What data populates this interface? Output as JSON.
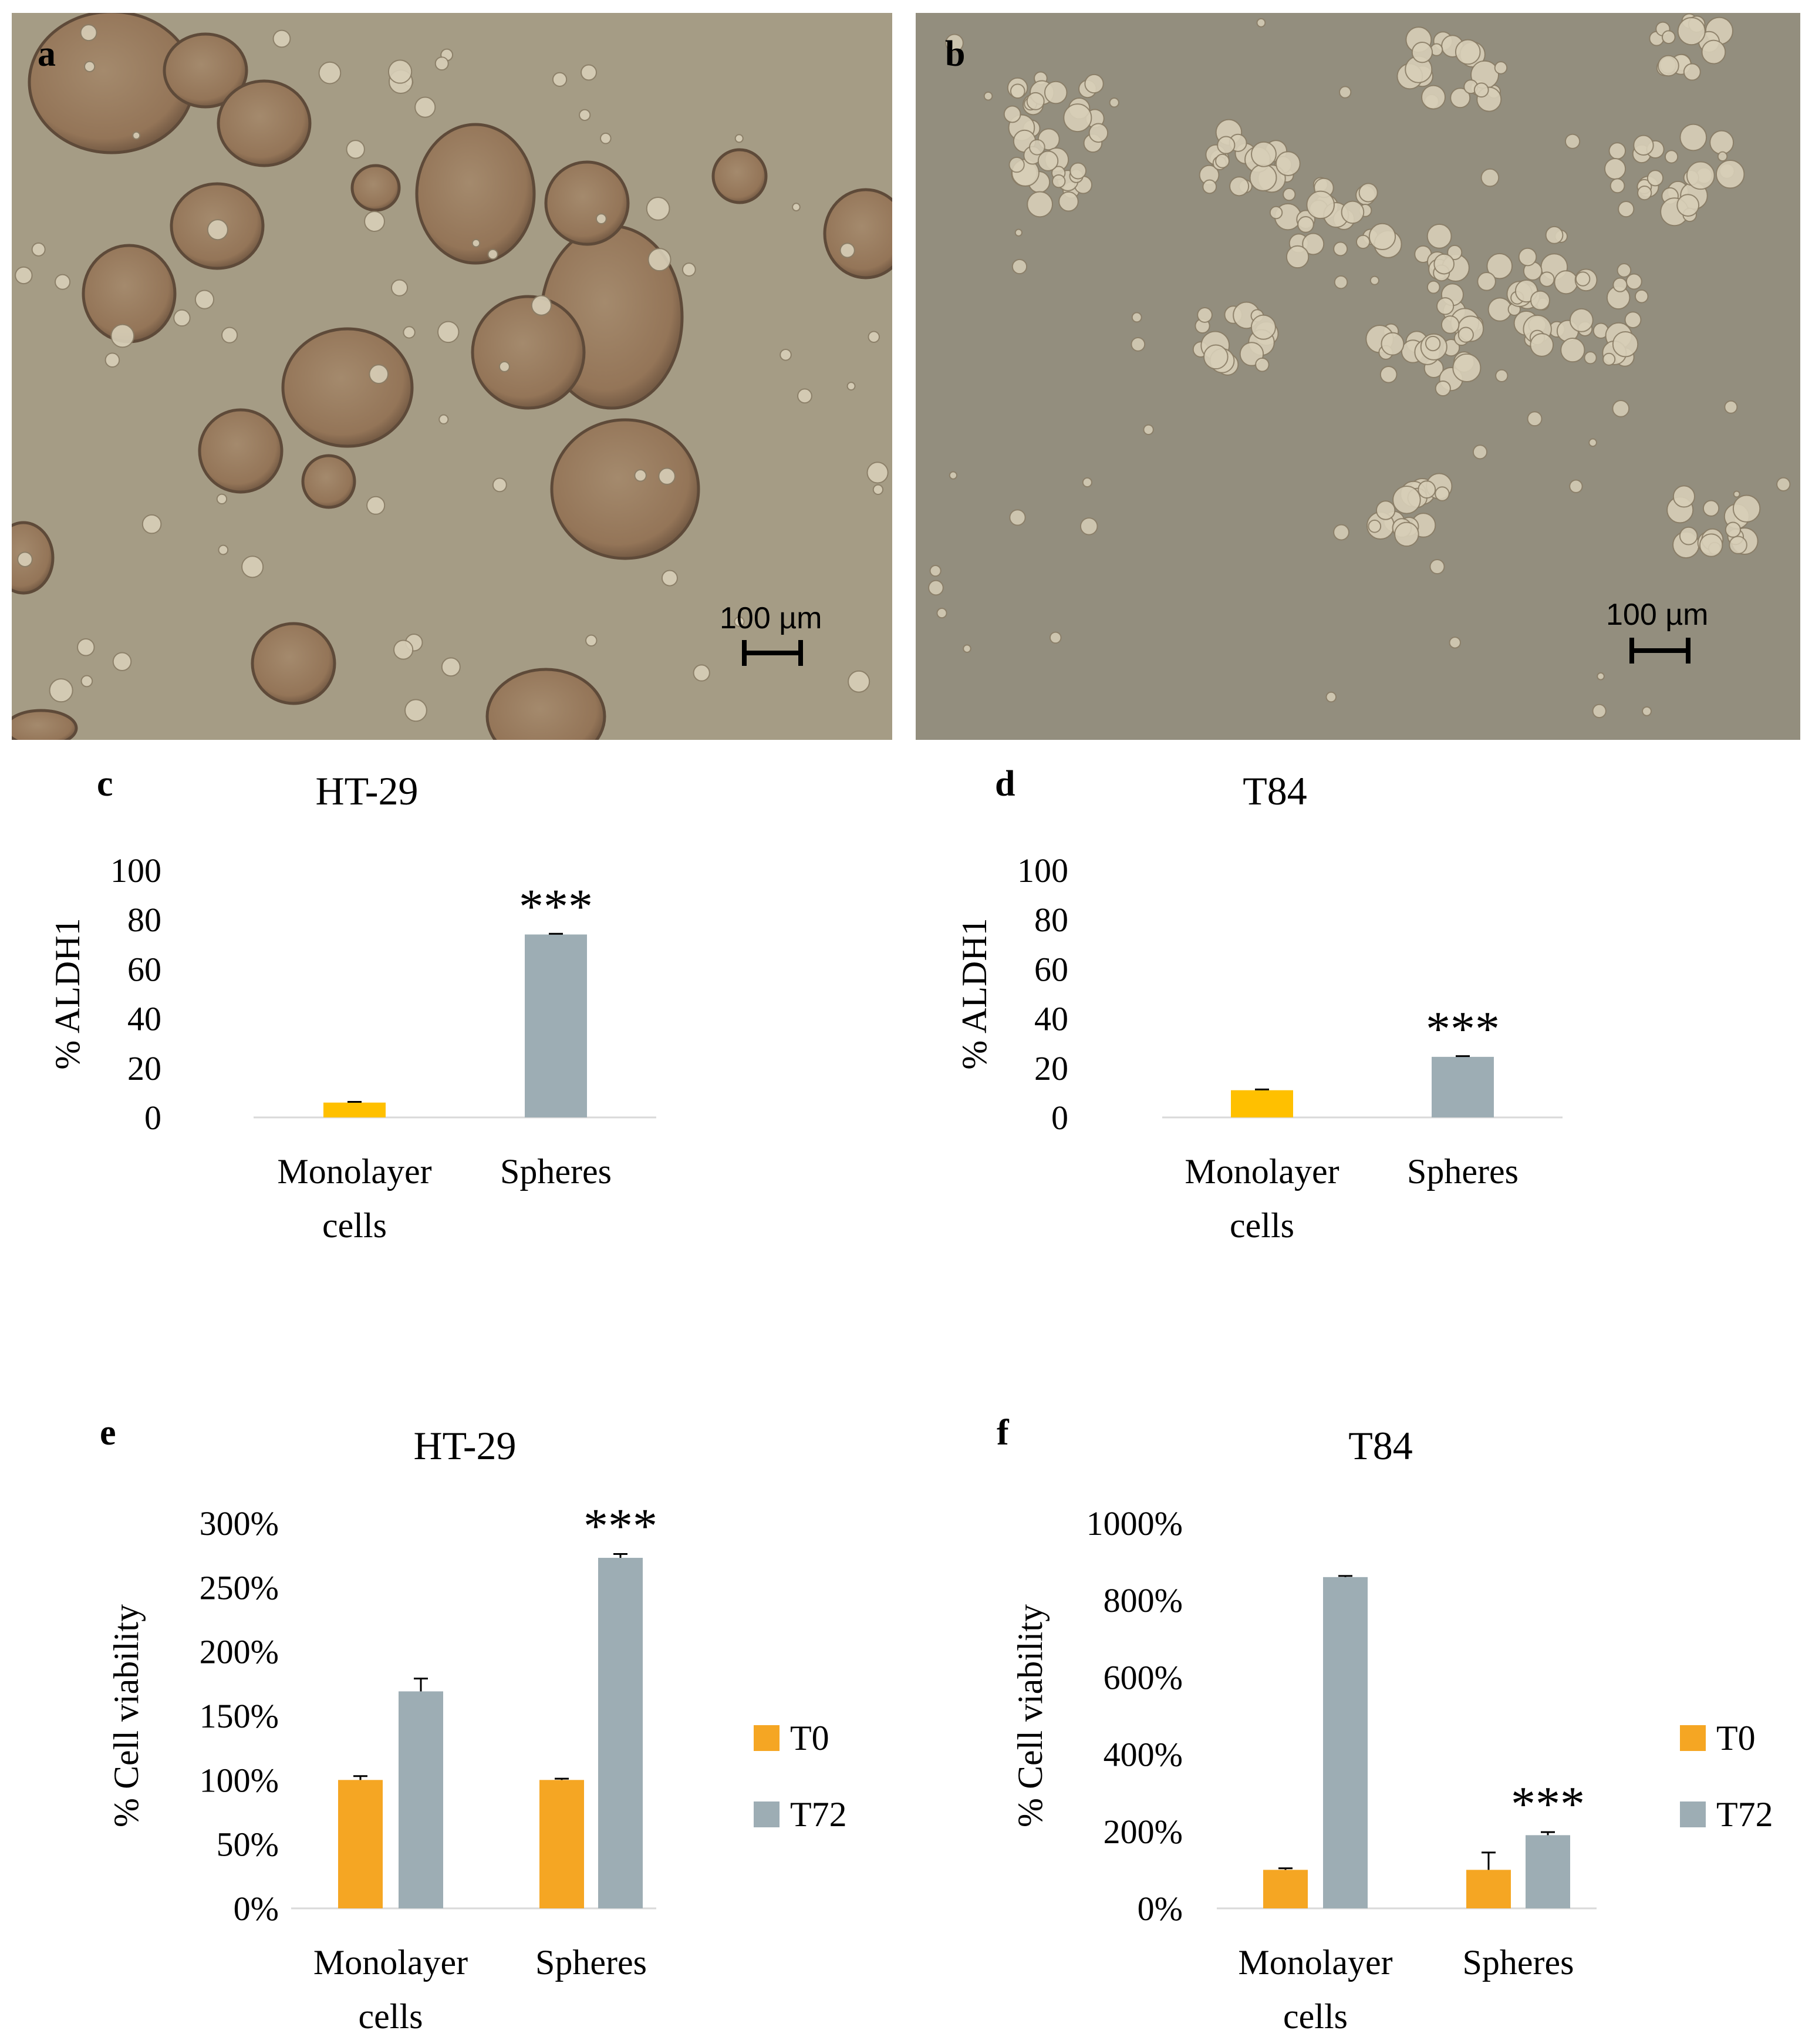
{
  "panels": {
    "a": {
      "letter": "a",
      "scale_label": "100 µm"
    },
    "b": {
      "letter": "b",
      "scale_label": "100 µm"
    }
  },
  "colors": {
    "monolayer_c": "#FFC000",
    "monolayer_d": "#FFC000",
    "t0": "#F5A623",
    "t72": "#9DADB4",
    "spheres": "#9DADB4",
    "micro_bg_a": "#a59c85",
    "micro_bg_b": "#938e7e",
    "sphere_fill": "#9d7f62",
    "cell_fill": "#d8cfb8"
  },
  "chart_data": [
    {
      "id": "c",
      "letter": "c",
      "type": "bar",
      "title": "HT-29",
      "ylabel": "% ALDH1",
      "categories": [
        "Monolayer cells",
        "Spheres"
      ],
      "category_lines": [
        [
          "Monolayer",
          "cells"
        ],
        [
          "Spheres"
        ]
      ],
      "values": [
        6,
        74
      ],
      "errors": [
        0.3,
        0.3
      ],
      "ylim": [
        0,
        100
      ],
      "yticks": [
        "0",
        "20",
        "40",
        "60",
        "80",
        "100"
      ],
      "annotations": [
        {
          "category": 1,
          "text": "***"
        }
      ]
    },
    {
      "id": "d",
      "letter": "d",
      "type": "bar",
      "title": "T84",
      "ylabel": "% ALDH1",
      "categories": [
        "Monolayer cells",
        "Spheres"
      ],
      "category_lines": [
        [
          "Monolayer",
          "cells"
        ],
        [
          "Spheres"
        ]
      ],
      "values": [
        11,
        24.5
      ],
      "errors": [
        0.3,
        0.3
      ],
      "ylim": [
        0,
        100
      ],
      "yticks": [
        "0",
        "20",
        "40",
        "60",
        "80",
        "100"
      ],
      "annotations": [
        {
          "category": 1,
          "text": "***"
        }
      ]
    },
    {
      "id": "e",
      "letter": "e",
      "type": "bar",
      "title": "HT-29",
      "ylabel": "% Cell viability",
      "categories": [
        "Monolayer cells",
        "Spheres"
      ],
      "category_lines": [
        [
          "Monolayer",
          "cells"
        ],
        [
          "Spheres"
        ]
      ],
      "series": [
        {
          "name": "T0",
          "values": [
            100,
            100
          ],
          "errors": [
            3,
            1
          ]
        },
        {
          "name": "T72",
          "values": [
            169,
            273
          ],
          "errors": [
            10,
            3
          ]
        }
      ],
      "ylim": [
        0,
        300
      ],
      "yticks": [
        "0%",
        "50%",
        "100%",
        "150%",
        "200%",
        "250%",
        "300%"
      ],
      "legend": "right",
      "annotations": [
        {
          "category": 1,
          "series": 1,
          "text": "***"
        }
      ]
    },
    {
      "id": "f",
      "letter": "f",
      "type": "bar",
      "title": "T84",
      "ylabel": "% Cell viability",
      "categories": [
        "Monolayer cells",
        "Spheres"
      ],
      "category_lines": [
        [
          "Monolayer",
          "cells"
        ],
        [
          "Spheres"
        ]
      ],
      "series": [
        {
          "name": "T0",
          "values": [
            100,
            100
          ],
          "errors": [
            4,
            45
          ]
        },
        {
          "name": "T72",
          "values": [
            860,
            190
          ],
          "errors": [
            3,
            8
          ]
        }
      ],
      "ylim": [
        0,
        1000
      ],
      "yticks": [
        "0%",
        "200%",
        "400%",
        "600%",
        "800%",
        "1000%"
      ],
      "legend": "right",
      "annotations": [
        {
          "category": 1,
          "series": 1,
          "text": "***"
        }
      ]
    }
  ]
}
